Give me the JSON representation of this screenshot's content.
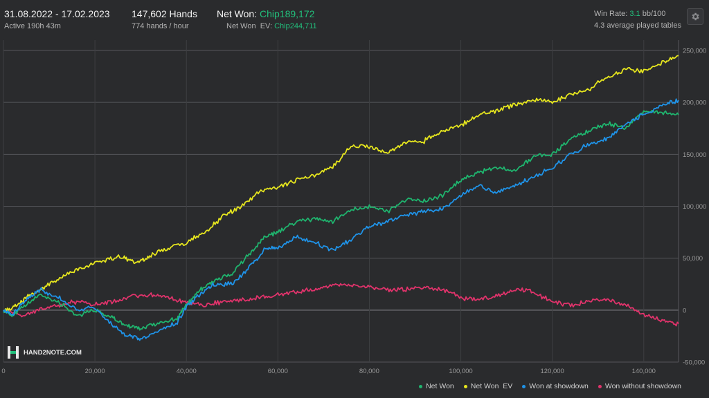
{
  "header": {
    "date_range": "31.08.2022 - 17.02.2023",
    "active": "Active 190h 43m",
    "hands": "147,602 Hands",
    "hands_per_hour": "774 hands / hour",
    "net_won_label": "Net Won:",
    "net_won_value": "Chip189,172",
    "net_won_ev_label": "Net Won  EV:",
    "net_won_ev_value": "Chip244,711",
    "win_rate_label": "Win Rate:",
    "win_rate_value": "3.1",
    "win_rate_unit": "bb/100",
    "avg_tables": "4.3 average played tables"
  },
  "logo_text": "HAND2NOTE.COM",
  "icons": {
    "settings": "gear-icon",
    "logo": "h2n-logo-icon"
  },
  "colors": {
    "net_won": "#1fb46e",
    "net_won_ev": "#e6e61e",
    "won_at_showdown": "#1f93e8",
    "won_without_showdown": "#e0336b",
    "accent_green": "#22c07c"
  },
  "chart_data": {
    "type": "line",
    "xlim": [
      0,
      147602
    ],
    "ylim": [
      -50000,
      250000
    ],
    "x_ticks": [
      "0",
      "20,000",
      "40,000",
      "60,000",
      "80,000",
      "100,000",
      "120,000",
      "140,000"
    ],
    "y_ticks": [
      "250,000",
      "200,000",
      "150,000",
      "100,000",
      "50,000",
      "0",
      "-50,000"
    ],
    "grid": true,
    "legend_position": "bottom-right",
    "series": [
      {
        "name": "Net Won",
        "color": "#1fb46e",
        "x": [
          0,
          2000,
          5000,
          8000,
          12000,
          16000,
          20000,
          24000,
          27000,
          30000,
          34000,
          38000,
          40000,
          43000,
          46000,
          50000,
          54000,
          57000,
          60000,
          64000,
          68000,
          72000,
          76000,
          80000,
          84000,
          88000,
          92000,
          96000,
          100000,
          104000,
          108000,
          112000,
          116000,
          120000,
          124000,
          128000,
          132000,
          136000,
          140000,
          144000,
          147602
        ],
        "y": [
          0,
          -5000,
          5000,
          15000,
          8000,
          -5000,
          0,
          -8000,
          -15000,
          -18000,
          -12000,
          -8000,
          5000,
          20000,
          28000,
          35000,
          55000,
          70000,
          75000,
          85000,
          88000,
          85000,
          97000,
          100000,
          95000,
          107000,
          105000,
          110000,
          125000,
          133000,
          137000,
          135000,
          148000,
          150000,
          165000,
          173000,
          180000,
          175000,
          192000,
          190000,
          188000
        ]
      },
      {
        "name": "Net Won  EV",
        "color": "#e6e61e",
        "x": [
          0,
          3000,
          6000,
          10000,
          14000,
          18000,
          22000,
          26000,
          29000,
          32000,
          36000,
          40000,
          44000,
          48000,
          52000,
          56000,
          60000,
          64000,
          68000,
          72000,
          76000,
          80000,
          84000,
          88000,
          92000,
          96000,
          100000,
          104000,
          108000,
          112000,
          116000,
          120000,
          124000,
          128000,
          132000,
          136000,
          140000,
          144000,
          147602
        ],
        "y": [
          0,
          5000,
          15000,
          25000,
          35000,
          42000,
          48000,
          52000,
          45000,
          52000,
          60000,
          65000,
          75000,
          90000,
          100000,
          115000,
          118000,
          125000,
          130000,
          138000,
          158000,
          157000,
          152000,
          162000,
          163000,
          172000,
          178000,
          188000,
          192000,
          198000,
          203000,
          200000,
          208000,
          212000,
          225000,
          232000,
          230000,
          238000,
          245000
        ]
      },
      {
        "name": "Won at showdown",
        "color": "#1f93e8",
        "x": [
          0,
          2000,
          5000,
          8000,
          12000,
          16000,
          20000,
          24000,
          27000,
          30000,
          34000,
          38000,
          40000,
          43000,
          46000,
          50000,
          54000,
          57000,
          60000,
          64000,
          68000,
          72000,
          76000,
          80000,
          84000,
          88000,
          92000,
          96000,
          100000,
          104000,
          108000,
          112000,
          116000,
          120000,
          124000,
          128000,
          132000,
          136000,
          140000,
          144000,
          147602
        ],
        "y": [
          0,
          -4000,
          10000,
          20000,
          12000,
          0,
          2000,
          -15000,
          -25000,
          -28000,
          -20000,
          -12000,
          3000,
          15000,
          25000,
          25000,
          42000,
          58000,
          60000,
          70000,
          65000,
          58000,
          68000,
          80000,
          85000,
          92000,
          95000,
          98000,
          110000,
          120000,
          113000,
          120000,
          128000,
          137000,
          150000,
          160000,
          165000,
          180000,
          188000,
          198000,
          202000
        ]
      },
      {
        "name": "Won without showdown",
        "color": "#e0336b",
        "x": [
          0,
          4000,
          8000,
          12000,
          16000,
          20000,
          24000,
          28000,
          32000,
          36000,
          40000,
          44000,
          48000,
          52000,
          56000,
          60000,
          64000,
          68000,
          72000,
          76000,
          80000,
          84000,
          88000,
          92000,
          96000,
          100000,
          104000,
          108000,
          112000,
          116000,
          120000,
          124000,
          128000,
          132000,
          136000,
          140000,
          144000,
          147602
        ],
        "y": [
          0,
          -5000,
          0,
          5000,
          8000,
          5000,
          8000,
          13000,
          15000,
          12000,
          8000,
          5000,
          8000,
          10000,
          12000,
          15000,
          17000,
          20000,
          24000,
          25000,
          22000,
          20000,
          20000,
          22000,
          20000,
          12000,
          10000,
          14000,
          20000,
          17000,
          8000,
          5000,
          8000,
          10000,
          5000,
          -5000,
          -10000,
          -13000
        ]
      }
    ]
  }
}
